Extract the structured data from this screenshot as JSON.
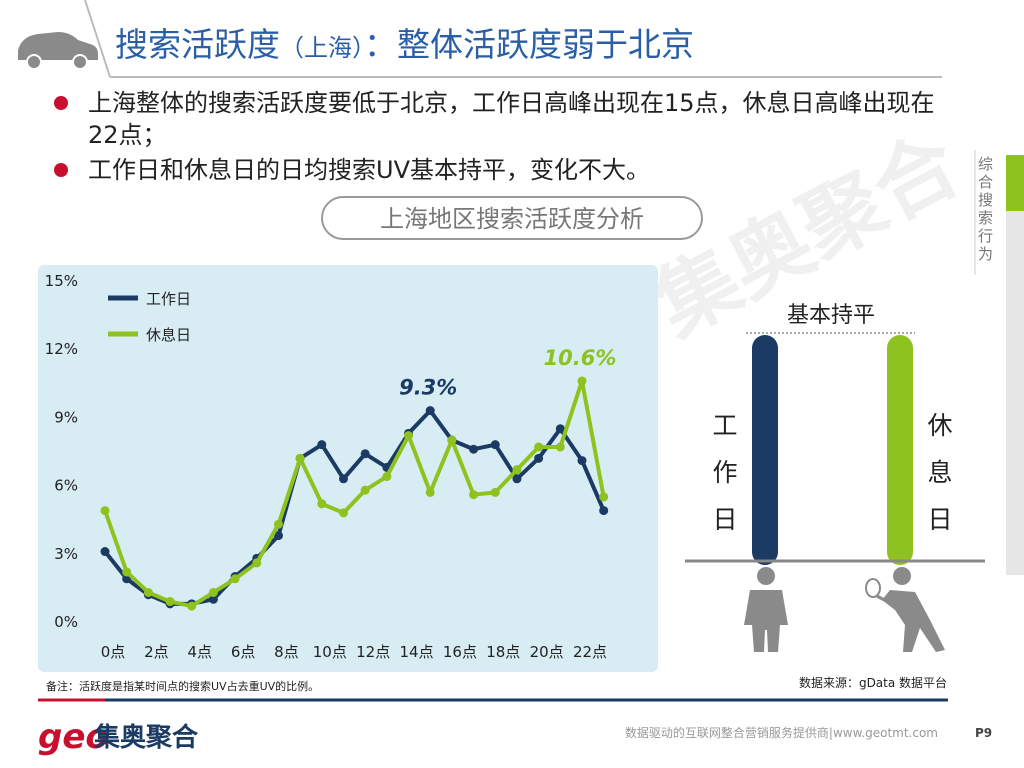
{
  "header": {
    "title": "搜索活跃度",
    "region": "（上海）",
    "subtitle": "：整体活跃度弱于北京"
  },
  "bullets": [
    "上海整体的搜索活跃度要低于北京，工作日高峰出现在15点，休息日高峰出现在22点；",
    "工作日和休息日的日均搜索UV基本持平，变化不大。"
  ],
  "section_label": "上海地区搜索活跃度分析",
  "side_tab": "综合搜索行为",
  "watermark": "集奥聚合",
  "chart_data": {
    "type": "line",
    "categories": [
      "0点",
      null,
      "2点",
      null,
      "4点",
      null,
      "6点",
      null,
      "8点",
      null,
      "10点",
      null,
      "12点",
      null,
      "14点",
      null,
      "16点",
      null,
      "18点",
      null,
      "20点",
      null,
      "22点",
      null
    ],
    "series": [
      {
        "name": "工作日",
        "color": "#1b3a64",
        "values": [
          3.1,
          1.9,
          1.2,
          0.8,
          0.8,
          1.0,
          2.0,
          2.8,
          3.8,
          7.2,
          7.8,
          6.3,
          7.4,
          6.8,
          8.3,
          9.3,
          8.0,
          7.6,
          7.8,
          6.3,
          7.2,
          8.5,
          7.1,
          4.9
        ],
        "value_labels": [
          null,
          null,
          null,
          null,
          null,
          null,
          null,
          null,
          null,
          null,
          null,
          null,
          null,
          null,
          null,
          "9.3%",
          null,
          null,
          null,
          null,
          null,
          null,
          null,
          null
        ]
      },
      {
        "name": "休息日",
        "color": "#8dc21f",
        "values": [
          4.9,
          2.2,
          1.3,
          0.9,
          0.7,
          1.3,
          1.9,
          2.6,
          4.3,
          7.2,
          5.2,
          4.8,
          5.8,
          6.4,
          8.2,
          5.7,
          8.0,
          5.6,
          5.7,
          6.7,
          7.7,
          7.7,
          10.6,
          5.5
        ],
        "value_labels": [
          null,
          null,
          null,
          null,
          null,
          null,
          null,
          null,
          null,
          null,
          null,
          null,
          null,
          null,
          null,
          null,
          null,
          null,
          null,
          null,
          null,
          null,
          "10.6%",
          null
        ]
      }
    ],
    "ylim": [
      0,
      15
    ],
    "yticks": [
      {
        "value": 0,
        "label": "0%"
      },
      {
        "value": 3,
        "label": "3%"
      },
      {
        "value": 6,
        "label": "6%"
      },
      {
        "value": 9,
        "label": "9%"
      },
      {
        "value": 12,
        "label": "12%"
      },
      {
        "value": 15,
        "label": "15%"
      }
    ],
    "grid": false,
    "legend": "upper-left"
  },
  "comparison": {
    "title": "基本持平",
    "left_label": "工作日",
    "right_label": "休息日"
  },
  "note": "备注：活跃度是指某时间点的搜索UV占去重UV的比例。",
  "source": "数据来源：gData  数据平台",
  "footer": {
    "logo_mark": "geo",
    "logo_name": "集奥聚合",
    "tagline": "数据驱动的互联网整合营销服务提供商|www.geotmt.com",
    "page": "P9"
  }
}
